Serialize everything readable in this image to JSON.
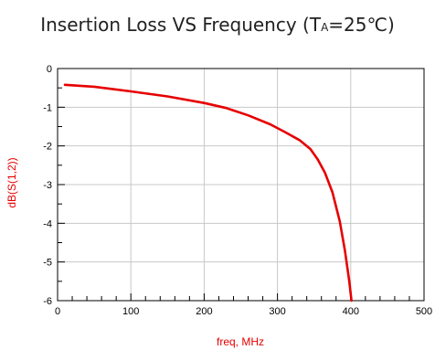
{
  "chart_data": {
    "type": "line",
    "title_main": "Insertion Loss VS Frequency (T",
    "title_sub": "A",
    "title_tail": "=25℃)",
    "xlabel": "freq, MHz",
    "ylabel": "dB(S(1,2))",
    "xlim": [
      0,
      500
    ],
    "ylim": [
      -6,
      0
    ],
    "x_ticks": [
      "0",
      "100",
      "200",
      "300",
      "400",
      "500"
    ],
    "y_ticks": [
      "0",
      "-1",
      "-2",
      "-3",
      "-4",
      "-5",
      "-6"
    ],
    "grid": true,
    "series": [
      {
        "color": "#e60000",
        "x": [
          10,
          50,
          100,
          150,
          200,
          230,
          260,
          290,
          310,
          330,
          345,
          355,
          365,
          375,
          385,
          392,
          398,
          401
        ],
        "y": [
          -0.42,
          -0.47,
          -0.59,
          -0.72,
          -0.89,
          -1.02,
          -1.21,
          -1.44,
          -1.64,
          -1.85,
          -2.08,
          -2.35,
          -2.7,
          -3.2,
          -3.95,
          -4.7,
          -5.5,
          -6.0
        ]
      }
    ]
  }
}
